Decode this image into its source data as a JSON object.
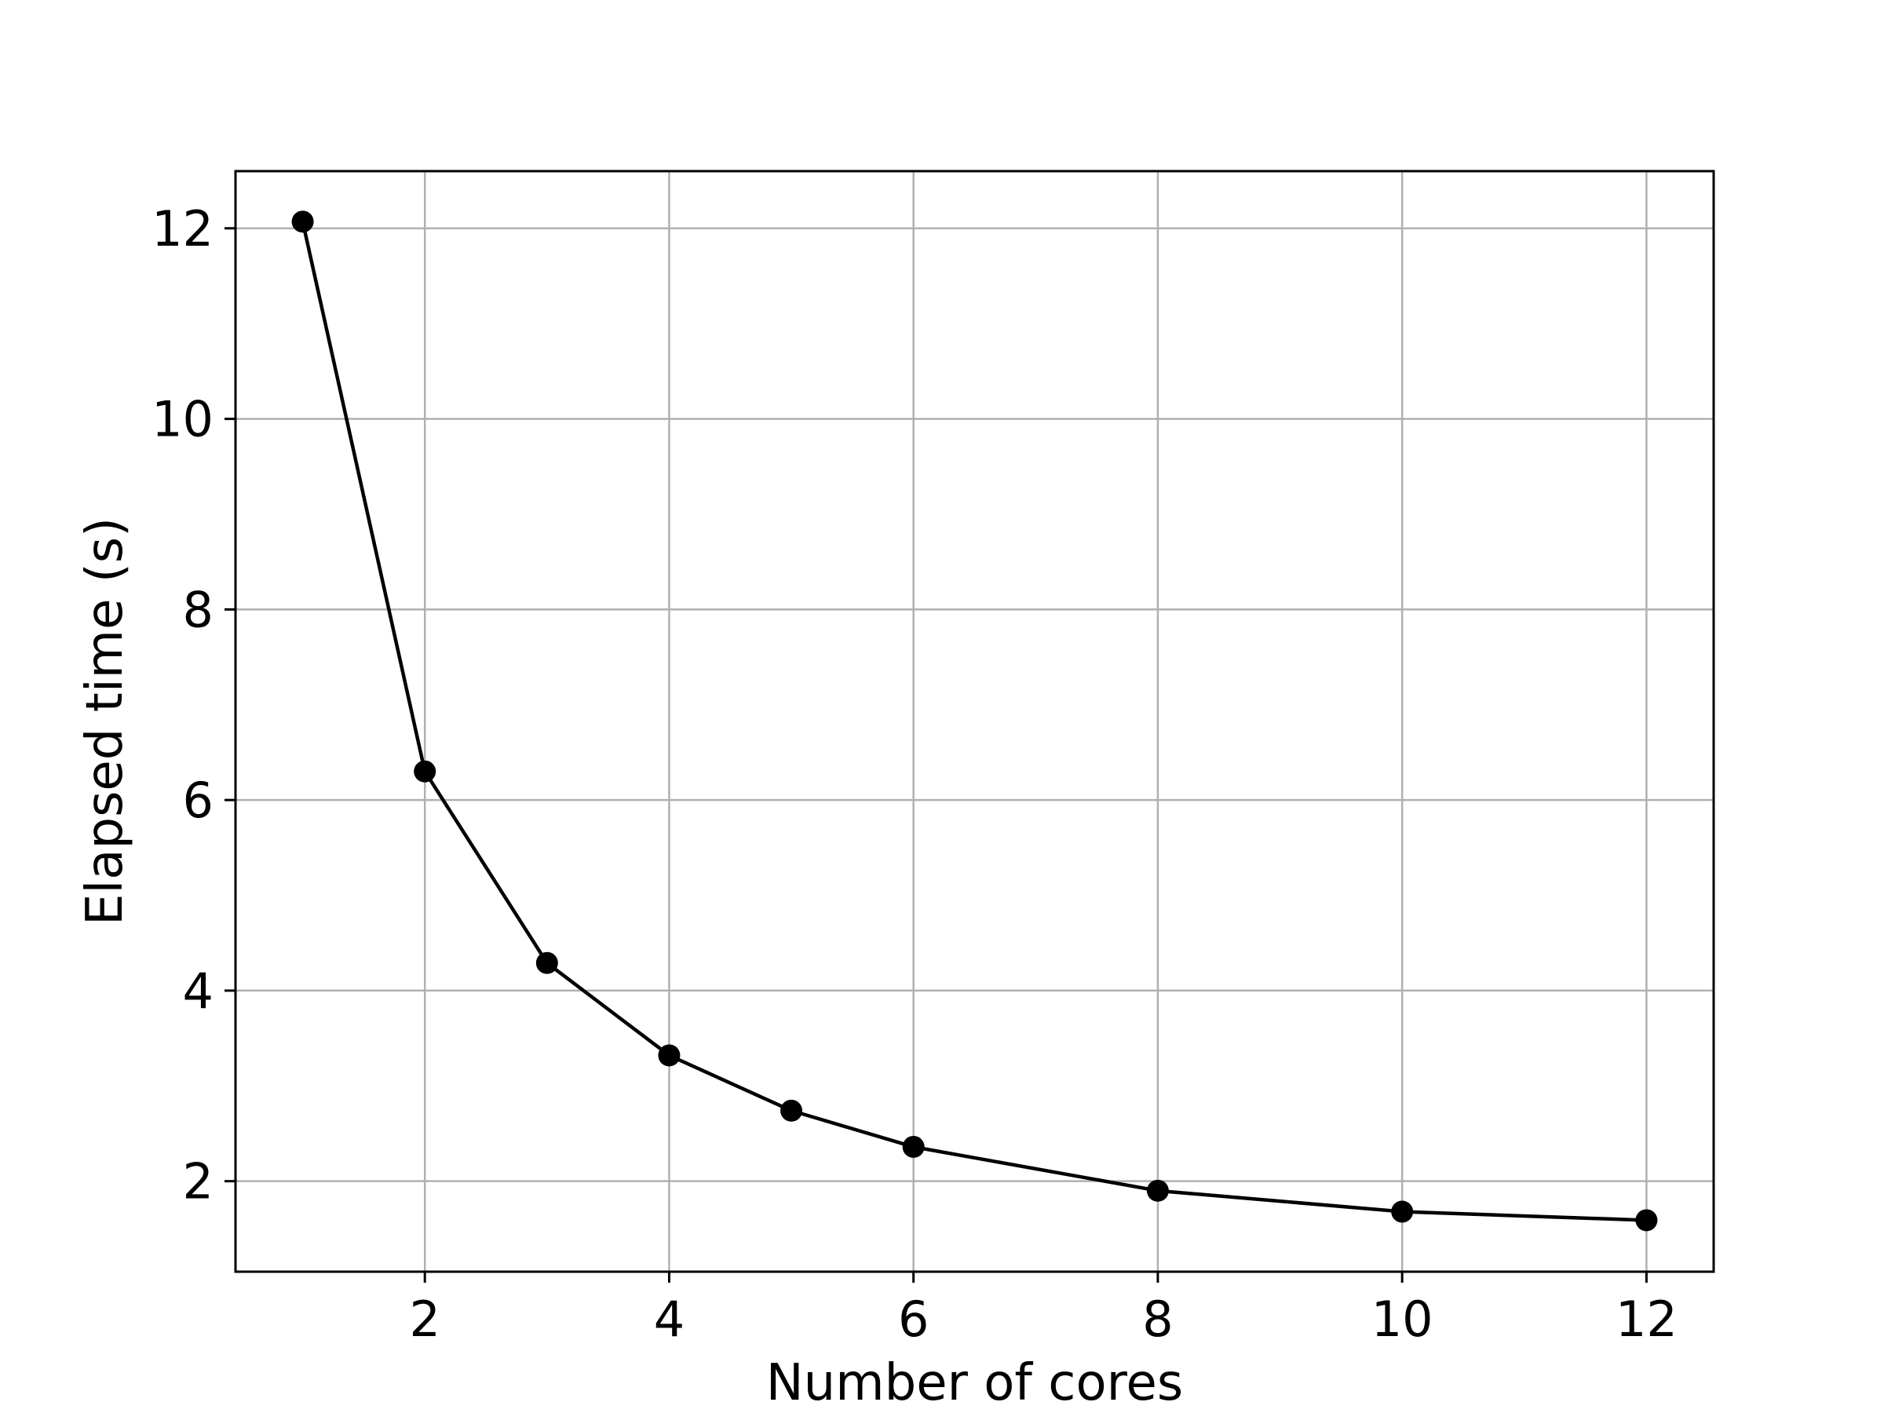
{
  "chart_data": {
    "type": "line",
    "title": "",
    "xlabel": "Number of cores",
    "ylabel": "Elapsed time (s)",
    "xlim": [
      0.45,
      12.55
    ],
    "ylim": [
      1.05,
      12.6
    ],
    "xticks": [
      2,
      4,
      6,
      8,
      10,
      12
    ],
    "yticks": [
      2,
      4,
      6,
      8,
      10,
      12
    ],
    "grid": true,
    "series": [
      {
        "marker": "circle",
        "color": "#000000",
        "x": [
          1,
          2,
          3,
          4,
          5,
          6,
          8,
          10,
          12
        ],
        "y": [
          12.07,
          6.3,
          4.29,
          3.32,
          2.74,
          2.36,
          1.9,
          1.68,
          1.59
        ]
      }
    ]
  },
  "colors": {
    "line": "#000000",
    "grid": "#b0b0b0",
    "frame": "#000000",
    "background": "#ffffff"
  }
}
